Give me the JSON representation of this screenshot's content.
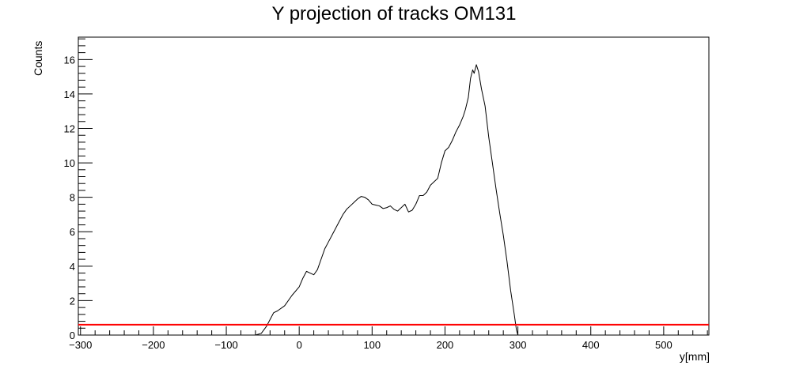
{
  "chart_data": {
    "type": "line",
    "title": "Y projection of tracks OM131",
    "xlabel": "y[mm]",
    "ylabel": "Counts",
    "xlim": [
      -303,
      562
    ],
    "ylim": [
      0,
      17.3
    ],
    "x_ticks": [
      -300,
      -200,
      -100,
      0,
      100,
      200,
      300,
      400,
      500
    ],
    "x_tick_labels": [
      "−300",
      "−200",
      "−100",
      "0",
      "100",
      "200",
      "300",
      "400",
      "500"
    ],
    "y_ticks": [
      0,
      2,
      4,
      6,
      8,
      10,
      12,
      14,
      16
    ],
    "y_tick_labels": [
      "0",
      "2",
      "4",
      "6",
      "8",
      "10",
      "12",
      "14",
      "16"
    ],
    "grid": false,
    "legend": "none",
    "series": [
      {
        "color": "#000000",
        "x": [
          -303,
          -60,
          -52,
          -45,
          -40,
          -35,
          -30,
          -20,
          -10,
          0,
          5,
          10,
          15,
          20,
          25,
          30,
          35,
          40,
          45,
          50,
          55,
          60,
          65,
          70,
          75,
          80,
          85,
          90,
          95,
          100,
          105,
          110,
          115,
          120,
          125,
          130,
          135,
          140,
          145,
          150,
          155,
          160,
          165,
          170,
          175,
          180,
          185,
          190,
          195,
          200,
          205,
          210,
          215,
          220,
          225,
          228,
          232,
          235,
          238,
          240,
          243,
          246,
          250,
          255,
          260,
          265,
          270,
          275,
          280,
          285,
          290,
          295,
          298,
          300,
          562
        ],
        "y": [
          0,
          0,
          0.1,
          0.5,
          0.9,
          1.3,
          1.4,
          1.7,
          2.3,
          2.8,
          3.3,
          3.7,
          3.6,
          3.5,
          3.8,
          4.4,
          5.0,
          5.4,
          5.8,
          6.2,
          6.6,
          7.0,
          7.3,
          7.5,
          7.7,
          7.9,
          8.05,
          8.0,
          7.85,
          7.6,
          7.55,
          7.5,
          7.35,
          7.4,
          7.5,
          7.3,
          7.2,
          7.4,
          7.6,
          7.15,
          7.25,
          7.6,
          8.1,
          8.1,
          8.3,
          8.7,
          8.9,
          9.1,
          10.0,
          10.7,
          10.9,
          11.3,
          11.8,
          12.2,
          12.7,
          13.1,
          13.8,
          14.9,
          15.4,
          15.2,
          15.7,
          15.3,
          14.3,
          13.3,
          11.5,
          10.0,
          8.5,
          7.1,
          5.8,
          4.3,
          2.6,
          1.2,
          0.3,
          0,
          0
        ]
      },
      {
        "color": "#ff0000",
        "x": [
          -303,
          562
        ],
        "y": [
          0.6,
          0.6
        ]
      }
    ]
  }
}
